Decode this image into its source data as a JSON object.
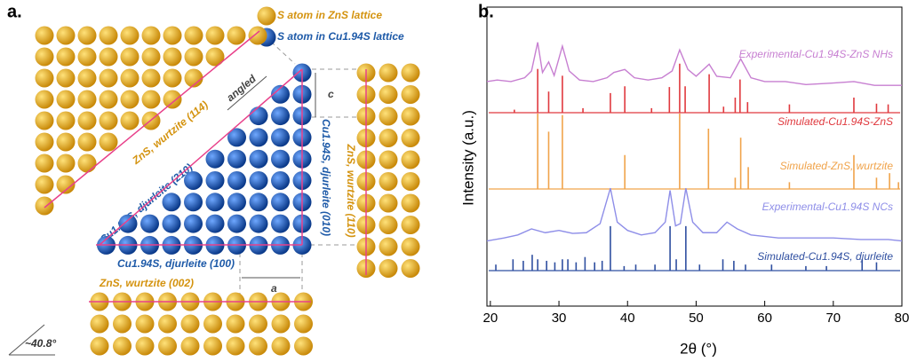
{
  "panel_a": {
    "label": "a.",
    "legend": [
      "S atom in ZnS lattice",
      "S atom in Cu1.94S lattice"
    ],
    "annotations": {
      "angled": "angled",
      "c": "c",
      "a": "a",
      "angle": "~40.8°"
    },
    "planes": [
      "ZnS, wurtzite (114)",
      "Cu1.94S, djurleite (210)",
      "Cu1.94S, djurleite (010)",
      "ZnS, wurtzite (110)",
      "Cu1.94S, djurleite (100)",
      "ZnS, wurtzite (002)"
    ]
  },
  "chart_data": {
    "type": "line",
    "panel_label": "b.",
    "xlabel": "2θ (°)",
    "ylabel": "Intensity (a.u.)",
    "xlim": [
      19.5,
      80
    ],
    "xticks": [
      20,
      30,
      40,
      50,
      60,
      70,
      80
    ],
    "series": [
      {
        "name": "Experimental-Cu1.94S-ZnS NHs",
        "color": "#c77fd1",
        "style": "line",
        "x": [
          19.5,
          21,
          23,
          25,
          26,
          26.9,
          27.6,
          28.5,
          29.3,
          30.5,
          31.5,
          33,
          35,
          37,
          38,
          39.6,
          41,
          43,
          45,
          46.5,
          47.6,
          48.8,
          50,
          51.9,
          53,
          55,
          56.5,
          58,
          60,
          63,
          66,
          70,
          73,
          76,
          80
        ],
        "values": [
          6,
          8,
          6,
          11,
          20,
          58,
          18,
          32,
          14,
          53,
          20,
          8,
          6,
          11,
          18,
          22,
          11,
          8,
          11,
          20,
          48,
          22,
          13,
          29,
          13,
          11,
          36,
          11,
          6,
          6,
          2,
          4,
          6,
          1,
          1
        ]
      },
      {
        "name": "Simulated-Cu1.94S-ZnS",
        "color": "#e0393e",
        "style": "stick",
        "x": [
          23.5,
          26.9,
          28.5,
          30.5,
          33.5,
          37.5,
          39.6,
          43.5,
          46.1,
          47.6,
          48.4,
          51.9,
          54,
          55.7,
          56.4,
          57.5,
          63.6,
          73,
          76.3,
          78
        ],
        "values": [
          4,
          58,
          28,
          49,
          6,
          26,
          35,
          6,
          34,
          65,
          35,
          51,
          8,
          20,
          44,
          14,
          11,
          20,
          12,
          11
        ]
      },
      {
        "name": "Simulated-ZnS, wurtzite",
        "color": "#f0a34a",
        "style": "stick",
        "x": [
          26.9,
          28.5,
          30.5,
          39.6,
          47.6,
          51.8,
          55.7,
          56.5,
          57.6,
          63.6,
          73,
          76.3,
          78.2,
          79.5
        ],
        "values": [
          100,
          76,
          98,
          45,
          100,
          80,
          15,
          68,
          29,
          9,
          45,
          15,
          21,
          9
        ]
      },
      {
        "name": "Experimental-Cu1.94S NCs",
        "color": "#8e8ee8",
        "style": "line",
        "x": [
          19.5,
          22,
          24,
          26,
          28,
          30,
          32,
          34,
          36,
          37.5,
          38.5,
          40,
          42,
          44,
          45.5,
          46.2,
          47,
          47.7,
          48.5,
          49.5,
          51,
          53,
          54.5,
          56,
          58,
          62,
          66,
          70,
          74,
          78,
          80
        ],
        "values": [
          4,
          8,
          12,
          20,
          15,
          18,
          14,
          15,
          27,
          74,
          29,
          18,
          12,
          15,
          29,
          71,
          24,
          27,
          74,
          29,
          15,
          15,
          29,
          20,
          12,
          8,
          8,
          8,
          6,
          6,
          4
        ]
      },
      {
        "name": "Simulated-Cu1.94S, djurleite",
        "color": "#2f4fa0",
        "style": "stick",
        "x": [
          20.8,
          23.3,
          24.8,
          26.1,
          26.9,
          28.2,
          29.4,
          30.5,
          31.3,
          32.5,
          33.8,
          35.2,
          36.3,
          37.5,
          39.5,
          41.2,
          44,
          46.2,
          47.1,
          48.5,
          50.5,
          53.9,
          55.5,
          57.2,
          61,
          66,
          69,
          74.2,
          76.3
        ],
        "values": [
          8,
          15,
          13,
          21,
          15,
          13,
          11,
          15,
          15,
          11,
          18,
          11,
          13,
          59,
          6,
          8,
          8,
          59,
          15,
          59,
          8,
          15,
          13,
          8,
          8,
          6,
          6,
          15,
          11
        ]
      }
    ]
  }
}
